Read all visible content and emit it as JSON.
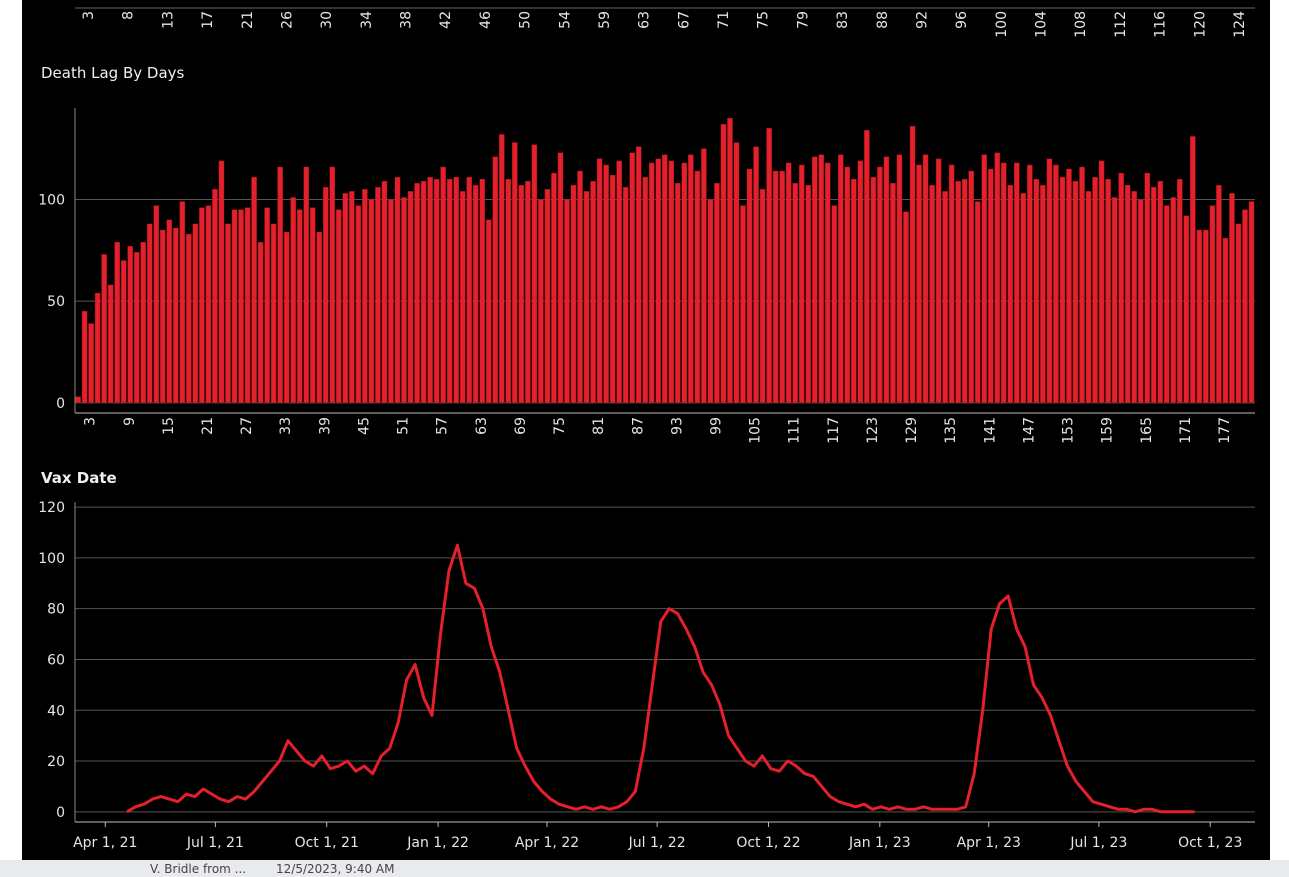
{
  "chart_data": [
    {
      "type": "bar",
      "categories": [
        "3",
        "8",
        "13",
        "17",
        "21",
        "26",
        "30",
        "34",
        "38",
        "42",
        "46",
        "50",
        "54",
        "59",
        "63",
        "67",
        "71",
        "75",
        "79",
        "83",
        "88",
        "92",
        "96",
        "100",
        "104",
        "108",
        "112",
        "116",
        "120",
        "124"
      ]
    },
    {
      "type": "bar",
      "title": "Death Lag By Days",
      "color": "#e3202b",
      "grid": true,
      "categories": [
        null,
        null,
        "3",
        null,
        null,
        null,
        null,
        null,
        "9",
        null,
        null,
        null,
        null,
        null,
        "15",
        null,
        null,
        null,
        null,
        null,
        "21",
        null,
        null,
        null,
        null,
        null,
        "27",
        null,
        null,
        null,
        null,
        null,
        "33",
        null,
        null,
        null,
        null,
        null,
        "39",
        null,
        null,
        null,
        null,
        null,
        "45",
        null,
        null,
        null,
        null,
        null,
        "51",
        null,
        null,
        null,
        null,
        null,
        "57",
        null,
        null,
        null,
        null,
        null,
        "63",
        null,
        null,
        null,
        null,
        null,
        "69",
        null,
        null,
        null,
        null,
        null,
        "75",
        null,
        null,
        null,
        null,
        null,
        "81",
        null,
        null,
        null,
        null,
        null,
        "87",
        null,
        null,
        null,
        null,
        null,
        "93",
        null,
        null,
        null,
        null,
        null,
        "99",
        null,
        null,
        null,
        null,
        null,
        "105",
        null,
        null,
        null,
        null,
        null,
        "111",
        null,
        null,
        null,
        null,
        null,
        "117",
        null,
        null,
        null,
        null,
        null,
        "123",
        null,
        null,
        null,
        null,
        null,
        "129",
        null,
        null,
        null,
        null,
        null,
        "135",
        null,
        null,
        null,
        null,
        null,
        "141",
        null,
        null,
        null,
        null,
        null,
        "147",
        null,
        null,
        null,
        null,
        null,
        "153",
        null,
        null,
        null,
        null,
        null,
        "159",
        null,
        null,
        null,
        null,
        null,
        "165",
        null,
        null,
        null,
        null,
        null,
        "171",
        null,
        null,
        null,
        null,
        null,
        "177",
        null,
        null,
        null,
        null
      ],
      "values": [
        3,
        45,
        39,
        54,
        73,
        58,
        79,
        70,
        77,
        74,
        79,
        88,
        97,
        85,
        90,
        86,
        99,
        83,
        88,
        96,
        97,
        105,
        119,
        88,
        95,
        95,
        96,
        111,
        79,
        96,
        88,
        116,
        84,
        101,
        95,
        116,
        96,
        84,
        106,
        116,
        95,
        103,
        104,
        97,
        105,
        100,
        106,
        109,
        100,
        111,
        101,
        104,
        108,
        109,
        111,
        110,
        116,
        110,
        111,
        104,
        111,
        107,
        110,
        90,
        121,
        132,
        110,
        128,
        107,
        109,
        127,
        100,
        105,
        113,
        123,
        100,
        107,
        114,
        104,
        109,
        120,
        117,
        112,
        119,
        106,
        123,
        126,
        111,
        118,
        120,
        122,
        119,
        108,
        118,
        122,
        114,
        125,
        100,
        108,
        137,
        140,
        128,
        97,
        115,
        126,
        105,
        135,
        114,
        114,
        118,
        108,
        117,
        107,
        121,
        122,
        118,
        97,
        122,
        116,
        110,
        119,
        134,
        111,
        116,
        121,
        108,
        122,
        94,
        136,
        117,
        122,
        107,
        120,
        104,
        117,
        109,
        110,
        114,
        99,
        122,
        115,
        123,
        118,
        107,
        118,
        103,
        117,
        110,
        107,
        120,
        117,
        111,
        115,
        109,
        116,
        104,
        111,
        119,
        110,
        101,
        113,
        107,
        104,
        100,
        113,
        106,
        109,
        97,
        101,
        110,
        92,
        131,
        85,
        85,
        97,
        107,
        81,
        103,
        88,
        95,
        99
      ],
      "ylim": [
        -5,
        145
      ],
      "yticks": [
        0,
        50,
        100
      ]
    },
    {
      "type": "line",
      "title": "Vax Date",
      "color": "#e3202b",
      "grid": true,
      "x": [
        "2021-03-29",
        "2021-04-05",
        "2021-04-12",
        "2021-04-19",
        "2021-04-26",
        "2021-05-03",
        "2021-05-10",
        "2021-05-17",
        "2021-05-24",
        "2021-05-31",
        "2021-06-07",
        "2021-06-14",
        "2021-06-21",
        "2021-06-28",
        "2021-07-05",
        "2021-07-12",
        "2021-07-19",
        "2021-07-26",
        "2021-08-02",
        "2021-08-09",
        "2021-08-16",
        "2021-08-23",
        "2021-08-30",
        "2021-09-06",
        "2021-09-13",
        "2021-09-20",
        "2021-09-27",
        "2021-10-04",
        "2021-10-11",
        "2021-10-18",
        "2021-10-25",
        "2021-11-01",
        "2021-11-08",
        "2021-11-15",
        "2021-11-22",
        "2021-11-29",
        "2021-12-06",
        "2021-12-13",
        "2021-12-20",
        "2021-12-27",
        "2022-01-03",
        "2022-01-10",
        "2022-01-17",
        "2022-01-24",
        "2022-01-31",
        "2022-02-07",
        "2022-02-14",
        "2022-02-21",
        "2022-02-28",
        "2022-03-07",
        "2022-03-14",
        "2022-03-21",
        "2022-03-28",
        "2022-04-04",
        "2022-04-11",
        "2022-04-18",
        "2022-04-25",
        "2022-05-02",
        "2022-05-09",
        "2022-05-16",
        "2022-05-23",
        "2022-05-30",
        "2022-06-06",
        "2022-06-13",
        "2022-06-20",
        "2022-06-27",
        "2022-07-04",
        "2022-07-11",
        "2022-07-18",
        "2022-07-25",
        "2022-08-01",
        "2022-08-08",
        "2022-08-15",
        "2022-08-22",
        "2022-08-29",
        "2022-09-05",
        "2022-09-12",
        "2022-09-19",
        "2022-09-26",
        "2022-10-03",
        "2022-10-10",
        "2022-10-17",
        "2022-10-24",
        "2022-10-31",
        "2022-11-07",
        "2022-11-14",
        "2022-11-21",
        "2022-11-28",
        "2022-12-05",
        "2022-12-12",
        "2022-12-19",
        "2022-12-26",
        "2023-01-02",
        "2023-01-09",
        "2023-01-16",
        "2023-01-23",
        "2023-01-30",
        "2023-02-06",
        "2023-02-13",
        "2023-02-20",
        "2023-02-27",
        "2023-03-06",
        "2023-03-13",
        "2023-03-20",
        "2023-03-27",
        "2023-04-03",
        "2023-04-10",
        "2023-04-17",
        "2023-04-24",
        "2023-05-01",
        "2023-05-08",
        "2023-05-15",
        "2023-05-22",
        "2023-05-29",
        "2023-06-05",
        "2023-06-12",
        "2023-06-19",
        "2023-06-26",
        "2023-07-03",
        "2023-07-10",
        "2023-07-17",
        "2023-07-24",
        "2023-07-31",
        "2023-08-07",
        "2023-08-14",
        "2023-08-21",
        "2023-08-28",
        "2023-09-04",
        "2023-09-11",
        "2023-09-18"
      ],
      "values": [
        null,
        null,
        null,
        0,
        2,
        3,
        5,
        6,
        5,
        4,
        7,
        6,
        9,
        7,
        5,
        4,
        6,
        5,
        8,
        12,
        16,
        20,
        28,
        24,
        20,
        18,
        22,
        17,
        18,
        20,
        16,
        18,
        15,
        22,
        25,
        35,
        52,
        58,
        45,
        38,
        70,
        95,
        105,
        90,
        88,
        80,
        65,
        55,
        40,
        25,
        18,
        12,
        8,
        5,
        3,
        2,
        1,
        2,
        1,
        2,
        1,
        2,
        4,
        8,
        25,
        50,
        75,
        80,
        78,
        72,
        65,
        55,
        50,
        42,
        30,
        25,
        20,
        18,
        22,
        17,
        16,
        20,
        18,
        15,
        14,
        10,
        6,
        4,
        3,
        2,
        3,
        1,
        2,
        1,
        2,
        1,
        1,
        2,
        1,
        1,
        1,
        1,
        2,
        15,
        40,
        72,
        82,
        85,
        72,
        65,
        50,
        45,
        38,
        28,
        18,
        12,
        8,
        4,
        3,
        2,
        1,
        1,
        0,
        1,
        1,
        0,
        0,
        0,
        0,
        0
      ],
      "xlim": [
        "2021-03-07",
        "2023-11-07"
      ],
      "xticks": [
        {
          "value": "2021-04-01",
          "label": "Apr 1, 21"
        },
        {
          "value": "2021-07-01",
          "label": "Jul 1, 21"
        },
        {
          "value": "2021-10-01",
          "label": "Oct 1, 21"
        },
        {
          "value": "2022-01-01",
          "label": "Jan 1, 22"
        },
        {
          "value": "2022-04-01",
          "label": "Apr 1, 22"
        },
        {
          "value": "2022-07-01",
          "label": "Jul 1, 22"
        },
        {
          "value": "2022-10-01",
          "label": "Oct 1, 22"
        },
        {
          "value": "2023-01-01",
          "label": "Jan 1, 23"
        },
        {
          "value": "2023-04-01",
          "label": "Apr 1, 23"
        },
        {
          "value": "2023-07-01",
          "label": "Jul 1, 23"
        },
        {
          "value": "2023-10-01",
          "label": "Oct 1, 23"
        }
      ],
      "ylim": [
        -4,
        122
      ],
      "yticks": [
        0,
        20,
        40,
        60,
        80,
        100,
        120
      ]
    }
  ],
  "taskbar": [
    "V. Bridle from ...",
    "12/5/2023, 9:40 AM"
  ]
}
